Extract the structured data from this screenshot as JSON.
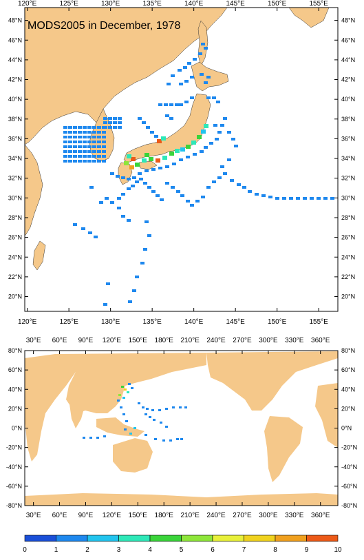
{
  "top_map": {
    "title": "MODS2005 in December, 1978",
    "lon_ticks": [
      "120°E",
      "125°E",
      "130°E",
      "135°E",
      "140°E",
      "145°E",
      "150°E",
      "155°E"
    ],
    "lat_ticks": [
      "20°N",
      "22°N",
      "24°N",
      "26°N",
      "28°N",
      "30°N",
      "32°N",
      "34°N",
      "36°N",
      "38°N",
      "40°N",
      "42°N",
      "44°N",
      "46°N",
      "48°N"
    ],
    "lon_range": [
      119.7,
      157.3
    ],
    "lat_range": [
      18.5,
      49.3
    ]
  },
  "bottom_map": {
    "lon_ticks": [
      "30°E",
      "60°E",
      "90°E",
      "120°E",
      "150°E",
      "180°E",
      "210°E",
      "240°E",
      "270°E",
      "300°E",
      "330°E",
      "360°E"
    ],
    "lat_ticks": [
      "80°N",
      "60°N",
      "40°N",
      "20°N",
      "0°N",
      "-20°N",
      "-40°N",
      "-60°N",
      "-80°N"
    ]
  },
  "colorbar": {
    "labels": [
      "0",
      "1",
      "2",
      "3",
      "4",
      "5",
      "6",
      "7",
      "8",
      "9",
      "10"
    ],
    "colors": [
      "#1a4fd8",
      "#1e88ee",
      "#22c4ee",
      "#2ee8b8",
      "#3ad43a",
      "#8ee63a",
      "#e8f03a",
      "#f0d21e",
      "#f0a01e",
      "#ec5a18"
    ]
  },
  "colors": {
    "land": "#f5c88a",
    "ocean": "#ffffff",
    "frame": "#000000"
  }
}
